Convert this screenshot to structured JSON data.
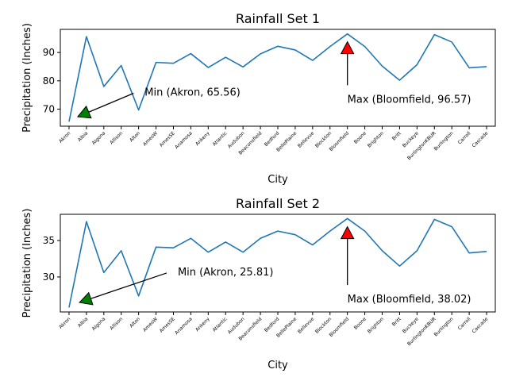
{
  "chart_data": [
    {
      "type": "line",
      "title": "Rainfall Set 1",
      "xlabel": "City",
      "ylabel": "Precipitation (Inches)",
      "categories": [
        "Akron",
        "Albia",
        "Algona",
        "Allison",
        "Alton",
        "AmesW",
        "AmesSE",
        "Anamosa",
        "Ankeny",
        "Atlantic",
        "Audubon",
        "Beaconsfield",
        "Bedford",
        "BellePlaine",
        "Bellevue",
        "Blockton",
        "Bloomfield",
        "Boone",
        "Brighton",
        "Britt",
        "Buckeye",
        "BurlingtonKBUR",
        "Burlington",
        "Carroll",
        "Cascade"
      ],
      "values": [
        65.56,
        95.6,
        78.0,
        85.4,
        69.7,
        86.5,
        86.2,
        89.6,
        84.7,
        88.3,
        84.9,
        89.5,
        92.2,
        90.9,
        87.2,
        92.1,
        96.57,
        92.1,
        85.2,
        80.2,
        85.7,
        96.3,
        93.7,
        84.6,
        85.0
      ],
      "ylim": [
        63.96,
        98.17
      ],
      "yticks": [
        70,
        80,
        90
      ],
      "grid": false,
      "line_color": "#1f77b4",
      "annotations": {
        "min": {
          "text": "Min (Akron, 65.56)",
          "arrow_color": "#008000",
          "point": [
            0.5,
            67.3
          ],
          "text_anchor": [
            4.35,
            74.2
          ]
        },
        "max": {
          "text": "Max (Bloomfield, 96.57)",
          "arrow_color": "#ff0000",
          "point": [
            16,
            93.8
          ],
          "text_anchor": [
            16,
            81.8
          ]
        }
      }
    },
    {
      "type": "line",
      "title": "Rainfall Set 2",
      "xlabel": "City",
      "ylabel": "Precipitation (Inches)",
      "categories": [
        "Akron",
        "Albia",
        "Algona",
        "Allison",
        "Alton",
        "AmesW",
        "AmesSE",
        "Anamosa",
        "Ankeny",
        "Atlantic",
        "Audubon",
        "Beaconsfield",
        "Bedford",
        "BellePlaine",
        "Bellevue",
        "Blockton",
        "Bloomfield",
        "Boone",
        "Brighton",
        "Britt",
        "Buckeye",
        "BurlingtonKBUR",
        "Burlington",
        "Carroll",
        "Cascade"
      ],
      "values": [
        25.81,
        37.6,
        30.6,
        33.6,
        27.4,
        34.1,
        34.0,
        35.3,
        33.4,
        34.8,
        33.4,
        35.3,
        36.3,
        35.8,
        34.4,
        36.3,
        38.02,
        36.3,
        33.6,
        31.5,
        33.6,
        37.9,
        36.9,
        33.3,
        33.5
      ],
      "ylim": [
        25.2,
        38.6
      ],
      "yticks": [
        30,
        35
      ],
      "grid": false,
      "line_color": "#1f77b4",
      "annotations": {
        "min": {
          "text": "Min (Akron, 25.81)",
          "arrow_color": "#008000",
          "point": [
            0.6,
            26.5
          ],
          "text_anchor": [
            6.25,
            30.0
          ]
        },
        "max": {
          "text": "Max (Bloomfield, 38.02)",
          "arrow_color": "#ff0000",
          "point": [
            16,
            36.9
          ],
          "text_anchor": [
            16,
            30.2
          ]
        }
      }
    }
  ]
}
